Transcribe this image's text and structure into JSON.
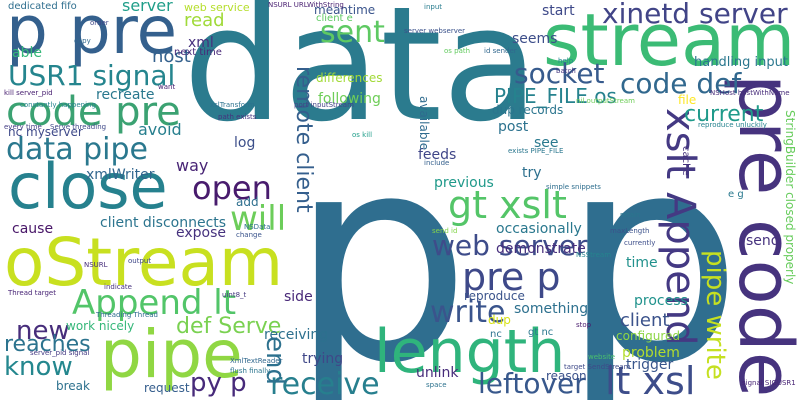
{
  "background_color": "#ffffff",
  "words": [
    {
      "text": "data",
      "color": "#2b7b8e",
      "vertical": false
    },
    {
      "text": "p p",
      "color": "#2f6e8f",
      "vertical": false
    },
    {
      "text": "stream",
      "color": "#3bbb75",
      "vertical": false
    },
    {
      "text": "p pre",
      "color": "#34608d",
      "vertical": false
    },
    {
      "text": "pre code",
      "color": "#46337e",
      "vertical": true
    },
    {
      "text": "length",
      "color": "#2fb47c",
      "vertical": false
    },
    {
      "text": "pipe",
      "color": "#90d743",
      "vertical": false
    },
    {
      "text": "oStream",
      "color": "#c8e020",
      "vertical": false
    },
    {
      "text": "close",
      "color": "#26818e",
      "vertical": false
    },
    {
      "text": "code pre",
      "color": "#3ba272",
      "vertical": false
    },
    {
      "text": "data pipe",
      "color": "#2a788e",
      "vertical": false
    },
    {
      "text": "USR1 signal",
      "color": "#25858e",
      "vertical": false
    },
    {
      "text": "Append lt",
      "color": "#52c569",
      "vertical": false
    },
    {
      "text": "xslt Append",
      "color": "#443983",
      "vertical": true
    },
    {
      "text": "receive",
      "color": "#277f8e",
      "vertical": false
    },
    {
      "text": "pre p",
      "color": "#3e4989",
      "vertical": false
    },
    {
      "text": "gt xslt",
      "color": "#54c568",
      "vertical": false
    },
    {
      "text": "web server",
      "color": "#3e4c8a",
      "vertical": false
    },
    {
      "text": "lt xsl",
      "color": "#3d4d8a",
      "vertical": false
    },
    {
      "text": "xinetd server",
      "color": "#414487",
      "vertical": false
    },
    {
      "text": "code def",
      "color": "#31688e",
      "vertical": false
    },
    {
      "text": "socket",
      "color": "#375b8d",
      "vertical": false
    },
    {
      "text": "open",
      "color": "#481b6d",
      "vertical": false
    },
    {
      "text": "will",
      "color": "#6ccd5a",
      "vertical": false
    },
    {
      "text": "write",
      "color": "#3a548c",
      "vertical": false
    },
    {
      "text": "know",
      "color": "#24878e",
      "vertical": false
    },
    {
      "text": "new",
      "color": "#472d7b",
      "vertical": false
    },
    {
      "text": "leftover",
      "color": "#38588c",
      "vertical": false
    },
    {
      "text": "remote client",
      "color": "#355f8d",
      "vertical": true
    },
    {
      "text": "sent",
      "color": "#5ec962",
      "vertical": false
    },
    {
      "text": "PIPE_FILE os",
      "color": "#26828e",
      "vertical": false
    },
    {
      "text": "py p",
      "color": "#472a7a",
      "vertical": false
    },
    {
      "text": "def Serve",
      "color": "#7ad151",
      "vertical": false
    },
    {
      "text": "end",
      "color": "#2d718e",
      "vertical": true
    },
    {
      "text": "reaches",
      "color": "#2c738e",
      "vertical": false
    },
    {
      "text": "current",
      "color": "#1f9a8a",
      "vertical": false
    },
    {
      "text": "pipe write",
      "color": "#c5e021",
      "vertical": true
    },
    {
      "text": "StringBuilder closed properly",
      "color": "#67cc5c",
      "vertical": true
    },
    {
      "text": "client",
      "color": "#3b528b",
      "vertical": false
    },
    {
      "text": "handling input",
      "color": "#2a778e",
      "vertical": false
    },
    {
      "text": "read",
      "color": "#a0da39",
      "vertical": false
    },
    {
      "text": "server",
      "color": "#1f9e89",
      "vertical": false
    },
    {
      "text": "host",
      "color": "#34618d",
      "vertical": false
    },
    {
      "text": "xml",
      "color": "#46307e",
      "vertical": false
    },
    {
      "text": "able",
      "color": "#35b779",
      "vertical": false
    },
    {
      "text": "dedicated fifo",
      "color": "#2e6e8e",
      "vertical": false
    },
    {
      "text": "recreate",
      "color": "#2a788e",
      "vertical": false
    },
    {
      "text": "avoid",
      "color": "#277f8e",
      "vertical": false
    },
    {
      "text": "log",
      "color": "#3c4f8a",
      "vertical": false
    },
    {
      "text": "way",
      "color": "#482475",
      "vertical": false
    },
    {
      "text": "nc myserver",
      "color": "#3e4989",
      "vertical": false
    },
    {
      "text": "xmlWriter",
      "color": "#31668e",
      "vertical": false
    },
    {
      "text": "client disconnects",
      "color": "#2b748e",
      "vertical": false
    },
    {
      "text": "cause",
      "color": "#481668",
      "vertical": false
    },
    {
      "text": "add",
      "color": "#2e6f8e",
      "vertical": false
    },
    {
      "text": "expose",
      "color": "#46327e",
      "vertical": false
    },
    {
      "text": "side",
      "color": "#482878",
      "vertical": false
    },
    {
      "text": "receiving",
      "color": "#2d708e",
      "vertical": false
    },
    {
      "text": "trying",
      "color": "#3f4788",
      "vertical": false
    },
    {
      "text": "break",
      "color": "#2d718e",
      "vertical": false
    },
    {
      "text": "request",
      "color": "#355e8d",
      "vertical": false
    },
    {
      "text": "work nicely",
      "color": "#35b779",
      "vertical": false
    },
    {
      "text": "unlink",
      "color": "#472c7a",
      "vertical": false
    },
    {
      "text": "reason",
      "color": "#3b528b",
      "vertical": false
    },
    {
      "text": "trigger",
      "color": "#39568c",
      "vertical": false
    },
    {
      "text": "problem",
      "color": "#b2dd2d",
      "vertical": false
    },
    {
      "text": "configured",
      "color": "#8ed645",
      "vertical": false
    },
    {
      "text": "something",
      "color": "#2d708e",
      "vertical": false
    },
    {
      "text": "dup",
      "color": "#d8e219",
      "vertical": false
    },
    {
      "text": "reproduce",
      "color": "#3a538b",
      "vertical": false
    },
    {
      "text": "process",
      "color": "#20928c",
      "vertical": false
    },
    {
      "text": "time",
      "color": "#21918c",
      "vertical": false
    },
    {
      "text": "send",
      "color": "#46327e",
      "vertical": false
    },
    {
      "text": "demonstrate",
      "color": "#472f7d",
      "vertical": false
    },
    {
      "text": "occasionally",
      "color": "#2a788e",
      "vertical": false
    },
    {
      "text": "see",
      "color": "#29798e",
      "vertical": false
    },
    {
      "text": "try",
      "color": "#2d708e",
      "vertical": false
    },
    {
      "text": "previous",
      "color": "#1f998a",
      "vertical": false
    },
    {
      "text": "feeds",
      "color": "#404688",
      "vertical": false
    },
    {
      "text": "post",
      "color": "#2c728e",
      "vertical": false
    },
    {
      "text": "dup records",
      "color": "#2b758e",
      "vertical": false
    },
    {
      "text": "following",
      "color": "#6ece58",
      "vertical": false
    },
    {
      "text": "differences",
      "color": "#a2da37",
      "vertical": false
    },
    {
      "text": "seems",
      "color": "#3d4e8a",
      "vertical": false
    },
    {
      "text": "start",
      "color": "#3e4989",
      "vertical": false
    },
    {
      "text": "meantime",
      "color": "#3a548c",
      "vertical": false
    },
    {
      "text": "available",
      "color": "#2f6b8e",
      "vertical": true
    },
    {
      "text": "file",
      "color": "#fde725",
      "vertical": false
    },
    {
      "text": "cache",
      "color": "#46337e",
      "vertical": true
    },
    {
      "text": "web service",
      "color": "#b5de2b",
      "vertical": false
    },
    {
      "text": "next time",
      "color": "#482878",
      "vertical": false
    },
    {
      "text": "NSURL URLWithString",
      "color": "#481f70",
      "vertical": false
    },
    {
      "text": "client e",
      "color": "#5ec962",
      "vertical": false
    },
    {
      "text": "server webserver",
      "color": "#3b528b",
      "vertical": false
    },
    {
      "text": "os path",
      "color": "#63cb5f",
      "vertical": false
    },
    {
      "text": "id sender",
      "color": "#31688e",
      "vertical": false
    },
    {
      "text": "help",
      "color": "#23888e",
      "vertical": false
    },
    {
      "text": "batch",
      "color": "#453781",
      "vertical": false
    },
    {
      "text": "nil outputStream",
      "color": "#6ece58",
      "vertical": false
    },
    {
      "text": "NSHost hostWithName",
      "color": "#472c7a",
      "vertical": false
    },
    {
      "text": "reproduce unluckily",
      "color": "#26828e",
      "vertical": false
    },
    {
      "text": "kill server_pid",
      "color": "#482071",
      "vertical": false
    },
    {
      "text": "constantly happening",
      "color": "#25838e",
      "vertical": false
    },
    {
      "text": "Thread target",
      "color": "#482576",
      "vertical": false
    },
    {
      "text": "xslTransform",
      "color": "#2c728e",
      "vertical": false
    },
    {
      "text": "path exists",
      "color": "#46337e",
      "vertical": false
    },
    {
      "text": "Serve threading",
      "color": "#3f4889",
      "vertical": false
    },
    {
      "text": "every time",
      "color": "#433d84",
      "vertical": false
    },
    {
      "text": "os kill",
      "color": "#1f9e89",
      "vertical": false
    },
    {
      "text": "exists PIPE_FILE",
      "color": "#2a778e",
      "vertical": false
    },
    {
      "text": "simple snippets",
      "color": "#2e6e8e",
      "vertical": false
    },
    {
      "text": "NSStream",
      "color": "#25848e",
      "vertical": false
    },
    {
      "text": "target SendStream",
      "color": "#3e4a89",
      "vertical": false
    },
    {
      "text": "signal SIGUSR1",
      "color": "#482475",
      "vertical": false
    },
    {
      "text": "flush finally",
      "color": "#2b758e",
      "vertical": false
    },
    {
      "text": "XmlTextReader",
      "color": "#31688e",
      "vertical": false
    },
    {
      "text": "nc",
      "color": "#2c728e",
      "vertical": false
    },
    {
      "text": "gt nc",
      "color": "#2a788e",
      "vertical": false
    },
    {
      "text": "Threading Thread",
      "color": "#2f6b8e",
      "vertical": false
    },
    {
      "text": "server_pid signal",
      "color": "#443a83",
      "vertical": false
    },
    {
      "text": "indicate",
      "color": "#46327e",
      "vertical": false
    },
    {
      "text": "output",
      "color": "#3f4788",
      "vertical": false
    },
    {
      "text": "NSData",
      "color": "#2d708e",
      "vertical": false
    },
    {
      "text": "change",
      "color": "#3a548c",
      "vertical": false
    },
    {
      "text": "copy",
      "color": "#31688e",
      "vertical": false
    },
    {
      "text": "order",
      "color": "#3f4788",
      "vertical": false
    },
    {
      "text": "input",
      "color": "#287c8e",
      "vertical": false
    },
    {
      "text": "want",
      "color": "#482173",
      "vertical": false
    },
    {
      "text": "stop",
      "color": "#481a6c",
      "vertical": false
    },
    {
      "text": "retain",
      "color": "#2a768e",
      "vertical": false
    },
    {
      "text": "maxLength",
      "color": "#3b528b",
      "vertical": false
    },
    {
      "text": "currently",
      "color": "#3d4e8a",
      "vertical": false
    },
    {
      "text": "space",
      "color": "#2c728e",
      "vertical": false
    },
    {
      "text": "website",
      "color": "#4ac16d",
      "vertical": false
    },
    {
      "text": "NSURL",
      "color": "#472d7b",
      "vertical": false
    },
    {
      "text": "port inputStream",
      "color": "#414487",
      "vertical": false
    },
    {
      "text": "uint8_t",
      "color": "#453882",
      "vertical": false
    },
    {
      "text": "send id",
      "color": "#84d44b",
      "vertical": false
    },
    {
      "text": "e g",
      "color": "#29798e",
      "vertical": false
    },
    {
      "text": "include",
      "color": "#35608d",
      "vertical": false
    }
  ]
}
